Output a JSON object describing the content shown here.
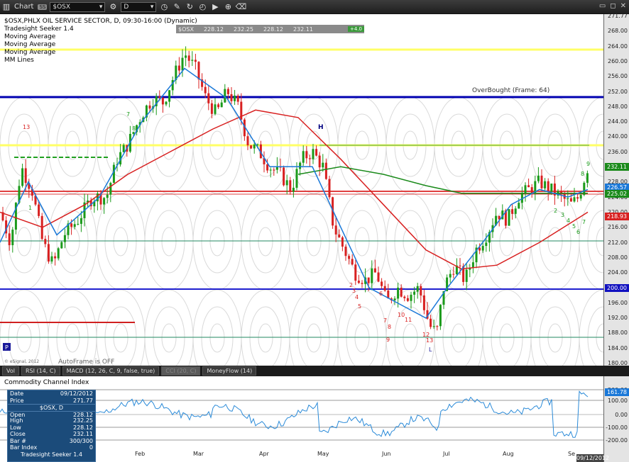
{
  "toolbar": {
    "title": "Chart",
    "badge": "SS",
    "symbol": "$OSX",
    "interval": "D"
  },
  "header": {
    "title": "$OSX,PHLX OIL SERVICE SECTOR, D, 09:30-16:00 (Dynamic)",
    "studies": [
      "Tradesight Seeker 1.4",
      "Moving Average",
      "Moving Average",
      "Moving Average",
      "MM Lines"
    ]
  },
  "quote": {
    "symbol": "$OSX",
    "open": "228.12",
    "high": "232.25",
    "low": "228.12",
    "close": "232.11",
    "change": "+4.0"
  },
  "annotations": {
    "overbought": "OverBought (Frame: 64)",
    "autoframe": "AutoFrame is OFF",
    "copyright": "© eSignal, 2012",
    "p_badge": "P",
    "seeker_counts": [
      "13",
      "7",
      "8",
      "1",
      "2",
      "3",
      "4",
      "5",
      "6",
      "7",
      "8",
      "9",
      "10",
      "11",
      "12",
      "13",
      "2",
      "3",
      "4",
      "5",
      "6",
      "7",
      "8",
      "9",
      "L"
    ]
  },
  "price_axis": {
    "ticks": [
      "271.77",
      "268.00",
      "264.00",
      "260.00",
      "256.00",
      "252.00",
      "248.00",
      "244.00",
      "240.00",
      "236.00",
      "232.00",
      "228.00",
      "224.00",
      "220.00",
      "216.00",
      "212.00",
      "208.00",
      "204.00",
      "200.00",
      "196.00",
      "192.00",
      "188.00",
      "184.00",
      "180.00"
    ],
    "last_price": "232.11",
    "ma1": "226.57",
    "ma2": "225.02",
    "ma3": "218.93",
    "level_200": "200.00",
    "colors": {
      "last": "#1a8a1a",
      "ma1": "#1a78d8",
      "ma2": "#1a8a1a",
      "ma3": "#d82020",
      "level": "#1010c0"
    }
  },
  "tabs": [
    "Vol",
    "RSI (14, C)",
    "MACD (12, 26, C, 9, false, true)",
    "CCI (20, C)",
    "MoneyFlow (14)"
  ],
  "cci": {
    "title": "Commodity Channel Index",
    "ticks": [
      "200.00",
      "100.00",
      "0.00",
      "-100.00",
      "-200.00"
    ],
    "value": "161.78"
  },
  "data_window": {
    "rows": [
      {
        "label": "Date",
        "value": "09/12/2012"
      },
      {
        "label": "Price",
        "value": "271.77"
      }
    ],
    "symbol": "$OSX, D",
    "ohlc": [
      {
        "label": "Open",
        "value": "228.12"
      },
      {
        "label": "High",
        "value": "232.25"
      },
      {
        "label": "Low",
        "value": "228.12"
      },
      {
        "label": "Close",
        "value": "232.11"
      },
      {
        "label": "Bar #",
        "value": "300/300"
      },
      {
        "label": "Bar Index",
        "value": "0"
      }
    ],
    "footer": "Tradesight Seeker 1.4"
  },
  "date_axis": {
    "months": [
      "Feb",
      "Mar",
      "Apr",
      "May",
      "Jun",
      "Jul",
      "Aug",
      "Se"
    ],
    "current_date": "09/12/2012"
  }
}
